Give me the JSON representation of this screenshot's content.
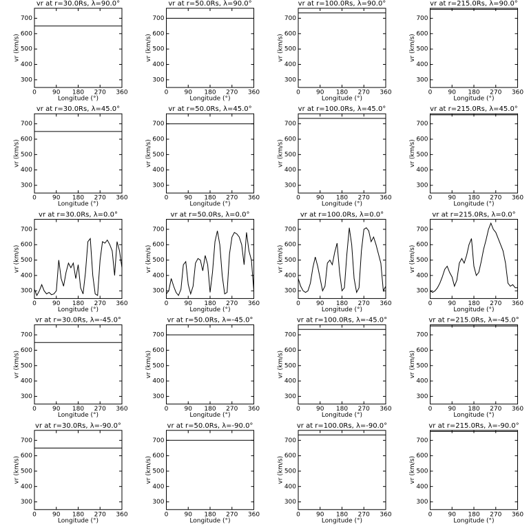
{
  "chart_data": [
    {
      "type": "line",
      "title": "vr at r=30.0Rs, λ=90.0°",
      "xlabel": "Longitude (°)",
      "ylabel": "vr (km/s)",
      "x": [
        0,
        360
      ],
      "values": [
        650,
        650
      ],
      "color": "#000000",
      "xlim": [
        0,
        360
      ],
      "xticks": [
        0,
        90,
        180,
        270,
        360
      ],
      "ylim": [
        250,
        765
      ],
      "yticks": [
        300,
        400,
        500,
        600,
        700
      ]
    },
    {
      "type": "line",
      "title": "vr at r=50.0Rs, λ=90.0°",
      "xlabel": "Longitude (°)",
      "ylabel": "vr (km/s)",
      "x": [
        0,
        360
      ],
      "values": [
        700,
        700
      ],
      "color": "#000000",
      "xlim": [
        0,
        360
      ],
      "xticks": [
        0,
        90,
        180,
        270,
        360
      ],
      "ylim": [
        250,
        765
      ],
      "yticks": [
        300,
        400,
        500,
        600,
        700
      ]
    },
    {
      "type": "line",
      "title": "vr at r=100.0Rs, λ=90.0°",
      "xlabel": "Longitude (°)",
      "ylabel": "vr (km/s)",
      "x": [
        0,
        360
      ],
      "values": [
        735,
        735
      ],
      "color": "#000000",
      "xlim": [
        0,
        360
      ],
      "xticks": [
        0,
        90,
        180,
        270,
        360
      ],
      "ylim": [
        250,
        765
      ],
      "yticks": [
        300,
        400,
        500,
        600,
        700
      ]
    },
    {
      "type": "line",
      "title": "vr at r=215.0Rs, λ=90.0°",
      "xlabel": "Longitude (°)",
      "ylabel": "vr (km/s)",
      "x": [
        0,
        360
      ],
      "values": [
        758,
        758
      ],
      "color": "#000000",
      "xlim": [
        0,
        360
      ],
      "xticks": [
        0,
        90,
        180,
        270,
        360
      ],
      "ylim": [
        250,
        765
      ],
      "yticks": [
        300,
        400,
        500,
        600,
        700
      ]
    },
    {
      "type": "line",
      "title": "vr at r=30.0Rs, λ=45.0°",
      "xlabel": "Longitude (°)",
      "ylabel": "vr (km/s)",
      "x": [
        0,
        360
      ],
      "values": [
        650,
        650
      ],
      "color": "#000000",
      "xlim": [
        0,
        360
      ],
      "xticks": [
        0,
        90,
        180,
        270,
        360
      ],
      "ylim": [
        250,
        765
      ],
      "yticks": [
        300,
        400,
        500,
        600,
        700
      ]
    },
    {
      "type": "line",
      "title": "vr at r=50.0Rs, λ=45.0°",
      "xlabel": "Longitude (°)",
      "ylabel": "vr (km/s)",
      "x": [
        0,
        360
      ],
      "values": [
        700,
        700
      ],
      "color": "#000000",
      "xlim": [
        0,
        360
      ],
      "xticks": [
        0,
        90,
        180,
        270,
        360
      ],
      "ylim": [
        250,
        765
      ],
      "yticks": [
        300,
        400,
        500,
        600,
        700
      ]
    },
    {
      "type": "line",
      "title": "vr at r=100.0Rs, λ=45.0°",
      "xlabel": "Longitude (°)",
      "ylabel": "vr (km/s)",
      "x": [
        0,
        360
      ],
      "values": [
        735,
        735
      ],
      "color": "#000000",
      "xlim": [
        0,
        360
      ],
      "xticks": [
        0,
        90,
        180,
        270,
        360
      ],
      "ylim": [
        250,
        765
      ],
      "yticks": [
        300,
        400,
        500,
        600,
        700
      ]
    },
    {
      "type": "line",
      "title": "vr at r=215.0Rs, λ=45.0°",
      "xlabel": "Longitude (°)",
      "ylabel": "vr (km/s)",
      "x": [
        0,
        360
      ],
      "values": [
        758,
        758
      ],
      "color": "#000000",
      "xlim": [
        0,
        360
      ],
      "xticks": [
        0,
        90,
        180,
        270,
        360
      ],
      "ylim": [
        250,
        765
      ],
      "yticks": [
        300,
        400,
        500,
        600,
        700
      ]
    },
    {
      "type": "line",
      "title": "vr at r=30.0Rs, λ=0.0°",
      "xlabel": "Longitude (°)",
      "ylabel": "vr (km/s)",
      "x": [
        0,
        10,
        20,
        30,
        40,
        50,
        60,
        70,
        80,
        90,
        100,
        110,
        120,
        130,
        140,
        150,
        160,
        170,
        180,
        190,
        200,
        210,
        220,
        230,
        240,
        250,
        260,
        270,
        280,
        290,
        300,
        310,
        320,
        330,
        340,
        350,
        360
      ],
      "values": [
        310,
        270,
        300,
        340,
        300,
        280,
        290,
        275,
        280,
        300,
        500,
        380,
        330,
        420,
        480,
        450,
        480,
        380,
        470,
        320,
        280,
        420,
        620,
        640,
        400,
        280,
        270,
        500,
        620,
        610,
        630,
        600,
        560,
        400,
        620,
        560,
        450
      ],
      "color": "#000000",
      "xlim": [
        0,
        360
      ],
      "xticks": [
        0,
        90,
        180,
        270,
        360
      ],
      "ylim": [
        250,
        765
      ],
      "yticks": [
        300,
        400,
        500,
        600,
        700
      ]
    },
    {
      "type": "line",
      "title": "vr at r=50.0Rs, λ=0.0°",
      "xlabel": "Longitude (°)",
      "ylabel": "vr (km/s)",
      "x": [
        0,
        10,
        20,
        30,
        40,
        50,
        60,
        70,
        80,
        90,
        100,
        110,
        120,
        130,
        140,
        150,
        160,
        170,
        180,
        190,
        200,
        210,
        220,
        230,
        240,
        250,
        260,
        270,
        280,
        290,
        300,
        310,
        320,
        330,
        340,
        350,
        360
      ],
      "values": [
        280,
        300,
        380,
        330,
        290,
        270,
        310,
        470,
        490,
        340,
        280,
        330,
        480,
        510,
        500,
        430,
        530,
        470,
        290,
        420,
        620,
        690,
        600,
        400,
        280,
        290,
        540,
        650,
        680,
        670,
        650,
        600,
        470,
        680,
        560,
        500,
        300
      ],
      "color": "#000000",
      "xlim": [
        0,
        360
      ],
      "xticks": [
        0,
        90,
        180,
        270,
        360
      ],
      "ylim": [
        250,
        765
      ],
      "yticks": [
        300,
        400,
        500,
        600,
        700
      ]
    },
    {
      "type": "line",
      "title": "vr at r=100.0Rs, λ=0.0°",
      "xlabel": "Longitude (°)",
      "ylabel": "vr (km/s)",
      "x": [
        0,
        10,
        20,
        30,
        40,
        50,
        60,
        70,
        80,
        90,
        100,
        110,
        120,
        130,
        140,
        150,
        160,
        170,
        180,
        190,
        200,
        210,
        220,
        230,
        240,
        250,
        260,
        270,
        280,
        290,
        300,
        310,
        320,
        330,
        340,
        350,
        360
      ],
      "values": [
        380,
        330,
        300,
        290,
        300,
        350,
        450,
        520,
        460,
        380,
        300,
        330,
        480,
        500,
        470,
        550,
        610,
        420,
        300,
        320,
        540,
        710,
        600,
        380,
        290,
        320,
        560,
        700,
        710,
        690,
        620,
        650,
        600,
        540,
        480,
        300,
        330
      ],
      "color": "#000000",
      "xlim": [
        0,
        360
      ],
      "xticks": [
        0,
        90,
        180,
        270,
        360
      ],
      "ylim": [
        250,
        765
      ],
      "yticks": [
        300,
        400,
        500,
        600,
        700
      ]
    },
    {
      "type": "line",
      "title": "vr at r=215.0Rs, λ=0.0°",
      "xlabel": "Longitude (°)",
      "ylabel": "vr (km/s)",
      "x": [
        0,
        10,
        20,
        30,
        40,
        50,
        60,
        70,
        80,
        90,
        100,
        110,
        120,
        130,
        140,
        150,
        160,
        170,
        180,
        190,
        200,
        210,
        220,
        230,
        240,
        250,
        260,
        270,
        280,
        290,
        300,
        310,
        320,
        330,
        340,
        350,
        360
      ],
      "values": [
        300,
        290,
        300,
        320,
        350,
        390,
        440,
        460,
        420,
        390,
        330,
        370,
        480,
        510,
        480,
        530,
        600,
        640,
        460,
        400,
        420,
        490,
        570,
        630,
        700,
        740,
        700,
        680,
        640,
        600,
        560,
        480,
        350,
        330,
        340,
        320,
        320
      ],
      "color": "#000000",
      "xlim": [
        0,
        360
      ],
      "xticks": [
        0,
        90,
        180,
        270,
        360
      ],
      "ylim": [
        250,
        765
      ],
      "yticks": [
        300,
        400,
        500,
        600,
        700
      ]
    },
    {
      "type": "line",
      "title": "vr at r=30.0Rs, λ=-45.0°",
      "xlabel": "Longitude (°)",
      "ylabel": "vr (km/s)",
      "x": [
        0,
        360
      ],
      "values": [
        650,
        650
      ],
      "color": "#000000",
      "xlim": [
        0,
        360
      ],
      "xticks": [
        0,
        90,
        180,
        270,
        360
      ],
      "ylim": [
        250,
        765
      ],
      "yticks": [
        300,
        400,
        500,
        600,
        700
      ]
    },
    {
      "type": "line",
      "title": "vr at r=50.0Rs, λ=-45.0°",
      "xlabel": "Longitude (°)",
      "ylabel": "vr (km/s)",
      "x": [
        0,
        360
      ],
      "values": [
        700,
        700
      ],
      "color": "#000000",
      "xlim": [
        0,
        360
      ],
      "xticks": [
        0,
        90,
        180,
        270,
        360
      ],
      "ylim": [
        250,
        765
      ],
      "yticks": [
        300,
        400,
        500,
        600,
        700
      ]
    },
    {
      "type": "line",
      "title": "vr at r=100.0Rs, λ=-45.0°",
      "xlabel": "Longitude (°)",
      "ylabel": "vr (km/s)",
      "x": [
        0,
        360
      ],
      "values": [
        735,
        735
      ],
      "color": "#000000",
      "xlim": [
        0,
        360
      ],
      "xticks": [
        0,
        90,
        180,
        270,
        360
      ],
      "ylim": [
        250,
        765
      ],
      "yticks": [
        300,
        400,
        500,
        600,
        700
      ]
    },
    {
      "type": "line",
      "title": "vr at r=215.0Rs, λ=-45.0°",
      "xlabel": "Longitude (°)",
      "ylabel": "vr (km/s)",
      "x": [
        0,
        360
      ],
      "values": [
        758,
        758
      ],
      "color": "#000000",
      "xlim": [
        0,
        360
      ],
      "xticks": [
        0,
        90,
        180,
        270,
        360
      ],
      "ylim": [
        250,
        765
      ],
      "yticks": [
        300,
        400,
        500,
        600,
        700
      ]
    },
    {
      "type": "line",
      "title": "vr at r=30.0Rs, λ=-90.0°",
      "xlabel": "Longitude (°)",
      "ylabel": "vr (km/s)",
      "x": [
        0,
        360
      ],
      "values": [
        650,
        650
      ],
      "color": "#000000",
      "xlim": [
        0,
        360
      ],
      "xticks": [
        0,
        90,
        180,
        270,
        360
      ],
      "ylim": [
        250,
        765
      ],
      "yticks": [
        300,
        400,
        500,
        600,
        700
      ]
    },
    {
      "type": "line",
      "title": "vr at r=50.0Rs, λ=-90.0°",
      "xlabel": "Longitude (°)",
      "ylabel": "vr (km/s)",
      "x": [
        0,
        360
      ],
      "values": [
        700,
        700
      ],
      "color": "#000000",
      "xlim": [
        0,
        360
      ],
      "xticks": [
        0,
        90,
        180,
        270,
        360
      ],
      "ylim": [
        250,
        765
      ],
      "yticks": [
        300,
        400,
        500,
        600,
        700
      ]
    },
    {
      "type": "line",
      "title": "vr at r=100.0Rs, λ=-90.0°",
      "xlabel": "Longitude (°)",
      "ylabel": "vr (km/s)",
      "x": [
        0,
        360
      ],
      "values": [
        735,
        735
      ],
      "color": "#000000",
      "xlim": [
        0,
        360
      ],
      "xticks": [
        0,
        90,
        180,
        270,
        360
      ],
      "ylim": [
        250,
        765
      ],
      "yticks": [
        300,
        400,
        500,
        600,
        700
      ]
    },
    {
      "type": "line",
      "title": "vr at r=215.0Rs, λ=-90.0°",
      "xlabel": "Longitude (°)",
      "ylabel": "vr (km/s)",
      "x": [
        0,
        360
      ],
      "values": [
        758,
        758
      ],
      "color": "#000000",
      "xlim": [
        0,
        360
      ],
      "xticks": [
        0,
        90,
        180,
        270,
        360
      ],
      "ylim": [
        250,
        765
      ],
      "yticks": [
        300,
        400,
        500,
        600,
        700
      ]
    }
  ]
}
